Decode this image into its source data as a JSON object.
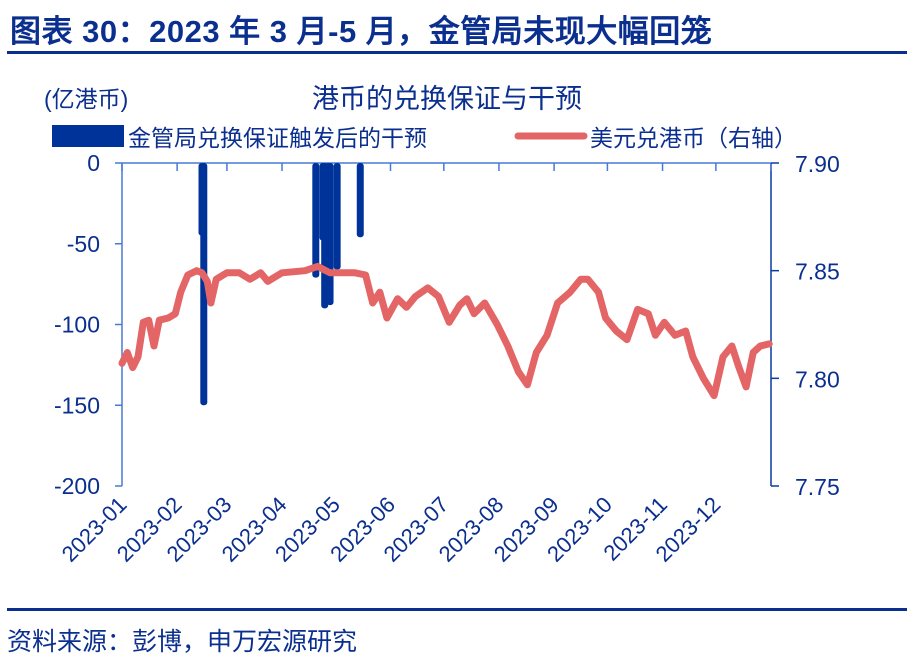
{
  "figure": {
    "title": "图表 30：2023 年 3 月-5 月，金管局未现大幅回笼",
    "source": "资料来源：彭博，申万宏源研究"
  },
  "colors": {
    "bar": "#003399",
    "line": "#e46565",
    "axis": "#4a78d6",
    "text": "#0b2f8f"
  },
  "chart_data": {
    "type": "bar+line",
    "title": "港币的兑换保证与干预",
    "left_axis_unit": "(亿港币)",
    "legend": [
      {
        "label": "金管局兑换保证触发后的干预",
        "type": "bar",
        "color": "#003399"
      },
      {
        "label": "美元兑港币（右轴）",
        "type": "line",
        "color": "#e46565"
      }
    ],
    "xlabel": "",
    "x_ticks": [
      "2023-01",
      "2023-02",
      "2023-03",
      "2023-04",
      "2023-05",
      "2023-06",
      "2023-07",
      "2023-08",
      "2023-09",
      "2023-10",
      "2023-11",
      "2023-12"
    ],
    "y_left": {
      "label": "亿港币",
      "ticks": [
        "0",
        "-50",
        "-100",
        "-150",
        "-200"
      ],
      "range": [
        -200,
        0
      ]
    },
    "y_right": {
      "label": "美元兑港币",
      "ticks": [
        "7.90",
        "7.85",
        "7.80",
        "7.75"
      ],
      "range": [
        7.75,
        7.9
      ]
    },
    "bars": [
      {
        "date": "2023-02-15",
        "value": -45
      },
      {
        "date": "2023-02-16",
        "value": -150
      },
      {
        "date": "2023-04-20",
        "value": -71
      },
      {
        "date": "2023-04-24",
        "value": -48
      },
      {
        "date": "2023-04-25",
        "value": -90
      },
      {
        "date": "2023-04-27",
        "value": -7
      },
      {
        "date": "2023-04-28",
        "value": -88
      },
      {
        "date": "2023-05-02",
        "value": -66
      },
      {
        "date": "2023-05-15",
        "value": -46
      }
    ],
    "line_series": {
      "name": "美元兑港币",
      "points": [
        [
          "2023-01-01",
          7.807
        ],
        [
          "2023-01-04",
          7.812
        ],
        [
          "2023-01-07",
          7.805
        ],
        [
          "2023-01-10",
          7.81
        ],
        [
          "2023-01-13",
          7.826
        ],
        [
          "2023-01-16",
          7.827
        ],
        [
          "2023-01-19",
          7.815
        ],
        [
          "2023-01-22",
          7.827
        ],
        [
          "2023-01-27",
          7.828
        ],
        [
          "2023-01-31",
          7.83
        ],
        [
          "2023-02-03",
          7.84
        ],
        [
          "2023-02-07",
          7.848
        ],
        [
          "2023-02-12",
          7.85
        ],
        [
          "2023-02-15",
          7.849
        ],
        [
          "2023-02-18",
          7.845
        ],
        [
          "2023-02-20",
          7.835
        ],
        [
          "2023-02-23",
          7.846
        ],
        [
          "2023-03-01",
          7.849
        ],
        [
          "2023-03-08",
          7.849
        ],
        [
          "2023-03-14",
          7.846
        ],
        [
          "2023-03-20",
          7.849
        ],
        [
          "2023-03-24",
          7.845
        ],
        [
          "2023-04-01",
          7.849
        ],
        [
          "2023-04-14",
          7.85
        ],
        [
          "2023-04-21",
          7.852
        ],
        [
          "2023-04-28",
          7.849
        ],
        [
          "2023-05-05",
          7.849
        ],
        [
          "2023-05-12",
          7.849
        ],
        [
          "2023-05-18",
          7.848
        ],
        [
          "2023-05-22",
          7.835
        ],
        [
          "2023-05-26",
          7.84
        ],
        [
          "2023-05-30",
          7.828
        ],
        [
          "2023-06-05",
          7.837
        ],
        [
          "2023-06-10",
          7.833
        ],
        [
          "2023-06-15",
          7.838
        ],
        [
          "2023-06-22",
          7.842
        ],
        [
          "2023-06-28",
          7.838
        ],
        [
          "2023-07-04",
          7.826
        ],
        [
          "2023-07-10",
          7.834
        ],
        [
          "2023-07-14",
          7.837
        ],
        [
          "2023-07-18",
          7.83
        ],
        [
          "2023-07-24",
          7.835
        ],
        [
          "2023-07-31",
          7.825
        ],
        [
          "2023-08-06",
          7.815
        ],
        [
          "2023-08-12",
          7.803
        ],
        [
          "2023-08-17",
          7.797
        ],
        [
          "2023-08-22",
          7.812
        ],
        [
          "2023-08-28",
          7.82
        ],
        [
          "2023-09-03",
          7.835
        ],
        [
          "2023-09-10",
          7.84
        ],
        [
          "2023-09-16",
          7.846
        ],
        [
          "2023-09-20",
          7.846
        ],
        [
          "2023-09-26",
          7.84
        ],
        [
          "2023-09-30",
          7.828
        ],
        [
          "2023-10-06",
          7.822
        ],
        [
          "2023-10-12",
          7.818
        ],
        [
          "2023-10-18",
          7.832
        ],
        [
          "2023-10-24",
          7.83
        ],
        [
          "2023-10-28",
          7.82
        ],
        [
          "2023-11-02",
          7.826
        ],
        [
          "2023-11-08",
          7.82
        ],
        [
          "2023-11-14",
          7.822
        ],
        [
          "2023-11-18",
          7.81
        ],
        [
          "2023-11-24",
          7.8
        ],
        [
          "2023-11-30",
          7.792
        ],
        [
          "2023-12-05",
          7.81
        ],
        [
          "2023-12-10",
          7.815
        ],
        [
          "2023-12-14",
          7.805
        ],
        [
          "2023-12-18",
          7.796
        ],
        [
          "2023-12-22",
          7.812
        ],
        [
          "2023-12-26",
          7.815
        ],
        [
          "2023-12-31",
          7.816
        ]
      ]
    },
    "grid": false,
    "legend_position": "top"
  }
}
